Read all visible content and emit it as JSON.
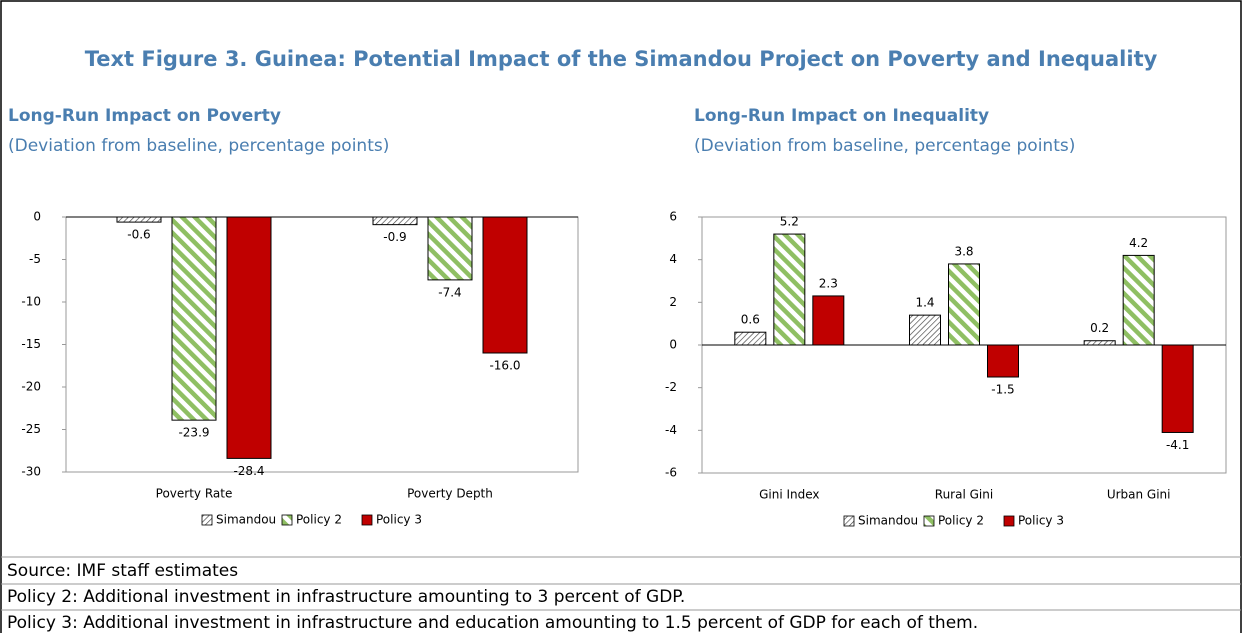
{
  "figure_title": "Text Figure 3. Guinea: Potential Impact of the Simandou Project on Poverty and Inequality",
  "chart_data": [
    {
      "type": "bar",
      "title": "Long-Run Impact on Poverty",
      "subtitle": "(Deviation from baseline, percentage points)",
      "categories": [
        "Poverty Rate",
        "Poverty Depth"
      ],
      "series": [
        {
          "name": "Simandou",
          "color": "#404040",
          "pattern": "hatch",
          "values": [
            -0.6,
            -0.9
          ]
        },
        {
          "name": "Policy 2",
          "color": "#8fbf63",
          "pattern": "stripes",
          "values": [
            -23.9,
            -7.4
          ]
        },
        {
          "name": "Policy 3",
          "color": "#c00000",
          "values": [
            -28.4,
            -16.0
          ],
          "value_labels": [
            "-28.4",
            "-16.0"
          ]
        }
      ],
      "ylim": [
        -30,
        0
      ],
      "yticks": [
        0,
        -5,
        -10,
        -15,
        -20,
        -25,
        -30
      ],
      "legend": "bottom"
    },
    {
      "type": "bar",
      "title": "Long-Run Impact on Inequality",
      "subtitle": "(Deviation from baseline, percentage points)",
      "categories": [
        "Gini Index",
        "Rural Gini",
        "Urban Gini"
      ],
      "series": [
        {
          "name": "Simandou",
          "color": "#404040",
          "pattern": "hatch",
          "values": [
            0.6,
            1.4,
            0.2
          ]
        },
        {
          "name": "Policy 2",
          "color": "#8fbf63",
          "pattern": "stripes",
          "values": [
            5.2,
            3.8,
            4.2
          ]
        },
        {
          "name": "Policy 3",
          "color": "#c00000",
          "values": [
            2.3,
            -1.5,
            -4.1
          ]
        }
      ],
      "ylim": [
        -6,
        6
      ],
      "yticks": [
        6,
        4,
        2,
        0,
        -2,
        -4,
        -6
      ],
      "legend": "bottom"
    }
  ],
  "notes": [
    "Source: IMF staff estimates",
    "Policy 2: Additional investment in infrastructure amounting to 3 percent of GDP.",
    "Policy 3: Additional investment in infrastructure and education amounting to 1.5 percent of GDP for each of them."
  ]
}
